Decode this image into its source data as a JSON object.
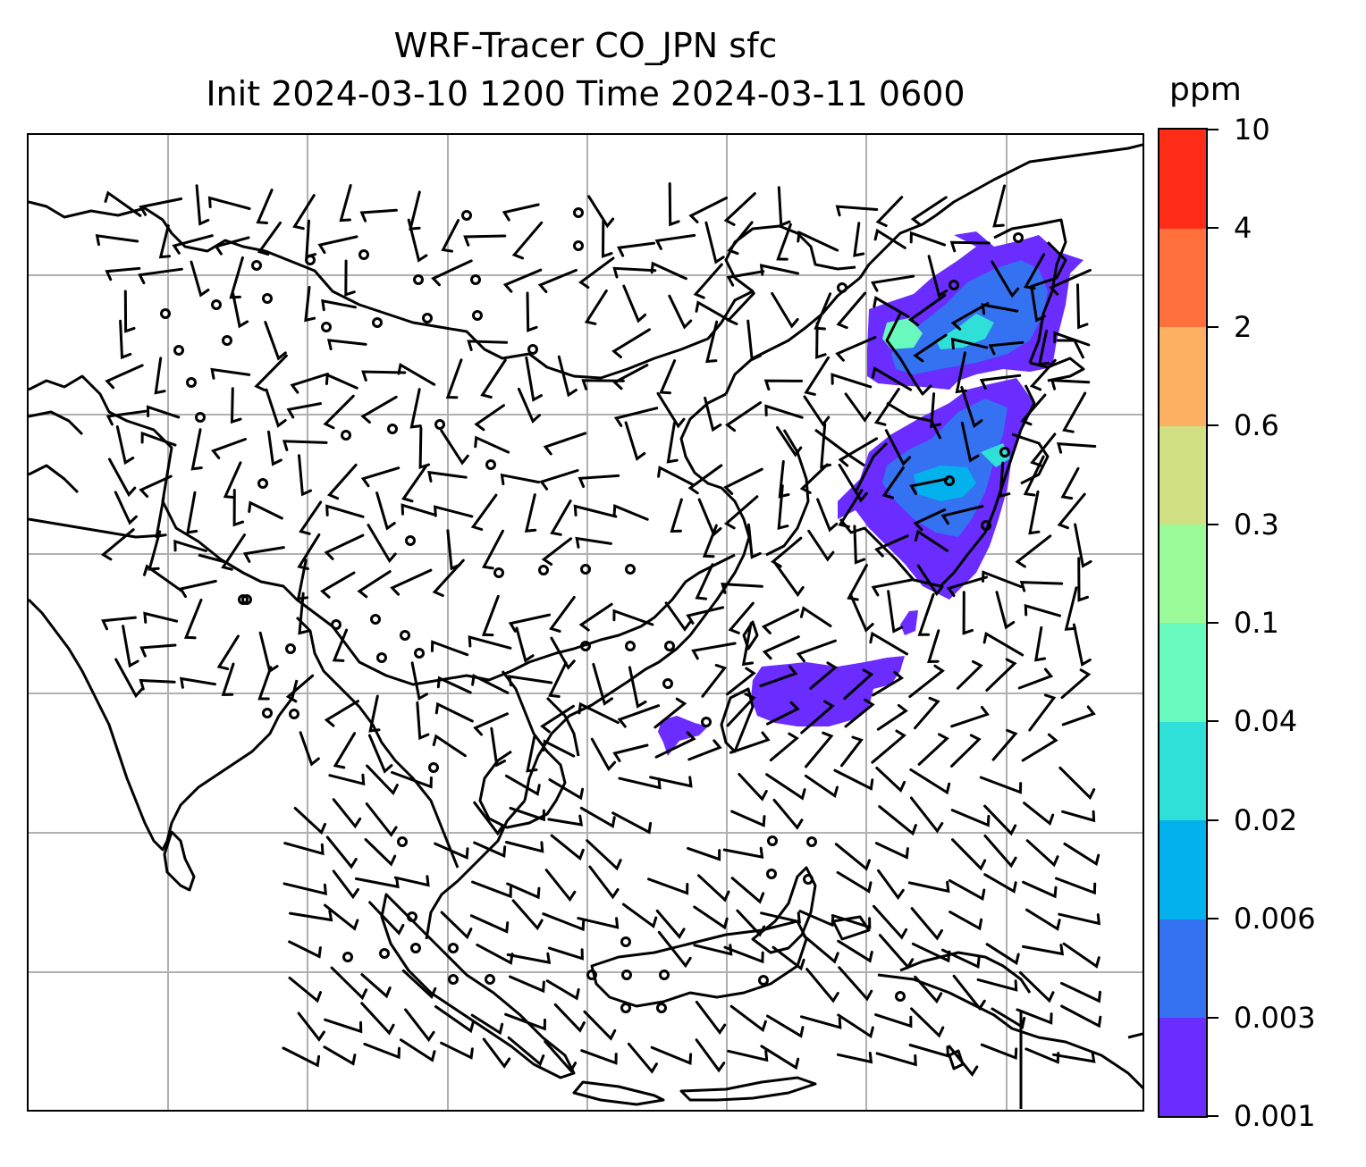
{
  "title": {
    "line1": "WRF-Tracer CO_JPN sfc",
    "line2": "Init 2024-03-10 1200 Time 2024-03-11 0600"
  },
  "colorbar": {
    "unit": "ppm",
    "tick_labels": [
      "0.001",
      "0.003",
      "0.006",
      "0.02",
      "0.04",
      "0.1",
      "0.3",
      "0.6",
      "2",
      "4",
      "10"
    ],
    "colors": [
      "#6a2cff",
      "#3472f2",
      "#03b1ec",
      "#2fe0d8",
      "#67f9bd",
      "#9cfb99",
      "#d0e083",
      "#fdb062",
      "#ff703c",
      "#ff2c18"
    ]
  },
  "map": {
    "projection_grid": "lat-lon gridlines",
    "field": "CO tracer concentration (surface)",
    "overlay": "wind barbs and calm-wind circles",
    "background": "#ffffff",
    "coastline_color": "#000000",
    "gridline_color": "#b0b0b0"
  }
}
